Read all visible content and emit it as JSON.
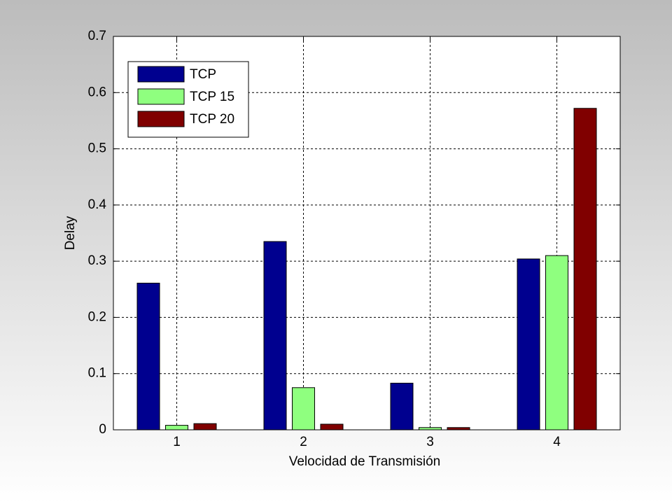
{
  "chart_data": {
    "type": "bar",
    "xlabel": "Velocidad de Transmisión",
    "ylabel": "Delay",
    "categories": [
      "1",
      "2",
      "3",
      "4"
    ],
    "series": [
      {
        "name": "TCP",
        "color": "#00008f",
        "values": [
          0.261,
          0.335,
          0.083,
          0.304
        ]
      },
      {
        "name": "TCP 15",
        "color": "#8fff7f",
        "values": [
          0.008,
          0.075,
          0.004,
          0.31
        ]
      },
      {
        "name": "TCP 20",
        "color": "#800000",
        "values": [
          0.011,
          0.01,
          0.004,
          0.572
        ]
      }
    ],
    "ylim": [
      0,
      0.7
    ],
    "yticks": [
      0,
      0.1,
      0.2,
      0.3,
      0.4,
      0.5,
      0.6,
      0.7
    ],
    "grid": true,
    "legend": "upper-left"
  }
}
